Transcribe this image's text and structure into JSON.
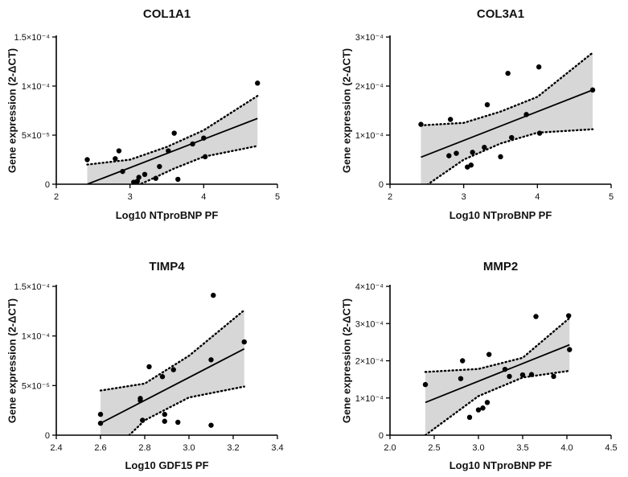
{
  "chart_data": [
    {
      "type": "scatter",
      "title": "COL1A1",
      "xlabel": "Log10 NTproBNP PF",
      "ylabel": "Gene expression (2-ΔCT)",
      "xlim": [
        2,
        5
      ],
      "ylim": [
        0,
        0.00015
      ],
      "xticks": [
        2,
        3,
        4,
        5
      ],
      "xtick_labels": [
        "2",
        "3",
        "4",
        "5"
      ],
      "yticks": [
        0,
        5e-05,
        0.0001,
        0.00015
      ],
      "ytick_labels": [
        "0",
        "5×10⁻⁵",
        "1×10⁻⁴",
        "1.5×10⁻⁴"
      ],
      "points": [
        {
          "x": 2.42,
          "y": 2.5e-05
        },
        {
          "x": 2.8,
          "y": 2.6e-05
        },
        {
          "x": 2.85,
          "y": 3.4e-05
        },
        {
          "x": 2.9,
          "y": 1.3e-05
        },
        {
          "x": 3.05,
          "y": 2e-06
        },
        {
          "x": 3.1,
          "y": 3e-06
        },
        {
          "x": 3.12,
          "y": 7e-06
        },
        {
          "x": 3.2,
          "y": 1e-05
        },
        {
          "x": 3.35,
          "y": 6e-06
        },
        {
          "x": 3.4,
          "y": 1.8e-05
        },
        {
          "x": 3.52,
          "y": 3.4e-05
        },
        {
          "x": 3.6,
          "y": 5.2e-05
        },
        {
          "x": 3.65,
          "y": 5e-06
        },
        {
          "x": 3.85,
          "y": 4.1e-05
        },
        {
          "x": 4.0,
          "y": 4.7e-05
        },
        {
          "x": 4.02,
          "y": 2.8e-05
        },
        {
          "x": 4.73,
          "y": 0.000103
        }
      ],
      "fit": {
        "x": [
          2.42,
          4.73
        ],
        "y": [
          0.0,
          6.7e-05
        ]
      },
      "ci_upper": {
        "x": [
          2.42,
          3.0,
          3.5,
          4.0,
          4.73
        ],
        "y": [
          2e-05,
          2.5e-05,
          3.8e-05,
          5.5e-05,
          9e-05
        ]
      },
      "ci_lower": {
        "x": [
          2.42,
          2.8,
          3.2,
          3.6,
          4.0,
          4.73
        ],
        "y": [
          -2e-05,
          -1e-05,
          2e-06,
          1.6e-05,
          2.8e-05,
          3.9e-05
        ]
      }
    },
    {
      "type": "scatter",
      "title": "COL3A1",
      "xlabel": "Log10 NTproBNP PF",
      "ylabel": "Gene expression (2-ΔCT)",
      "xlim": [
        2,
        5
      ],
      "ylim": [
        0,
        0.0003
      ],
      "xticks": [
        2,
        3,
        4,
        5
      ],
      "xtick_labels": [
        "2",
        "3",
        "4",
        "5"
      ],
      "yticks": [
        0,
        0.0001,
        0.0002,
        0.0003
      ],
      "ytick_labels": [
        "0",
        "1×10⁻⁴",
        "2×10⁻⁴",
        "3×10⁻⁴"
      ],
      "points": [
        {
          "x": 2.42,
          "y": 0.000122
        },
        {
          "x": 2.8,
          "y": 5.8e-05
        },
        {
          "x": 2.82,
          "y": 0.000132
        },
        {
          "x": 2.9,
          "y": 6.3e-05
        },
        {
          "x": 3.05,
          "y": 3.5e-05
        },
        {
          "x": 3.1,
          "y": 3.9e-05
        },
        {
          "x": 3.12,
          "y": 6.5e-05
        },
        {
          "x": 3.28,
          "y": 7.5e-05
        },
        {
          "x": 3.32,
          "y": 0.000162
        },
        {
          "x": 3.5,
          "y": 5.6e-05
        },
        {
          "x": 3.6,
          "y": 0.000226
        },
        {
          "x": 3.65,
          "y": 9.5e-05
        },
        {
          "x": 3.85,
          "y": 0.000142
        },
        {
          "x": 4.02,
          "y": 0.000239
        },
        {
          "x": 4.03,
          "y": 0.000104
        },
        {
          "x": 4.75,
          "y": 0.000192
        }
      ],
      "fit": {
        "x": [
          2.42,
          4.75
        ],
        "y": [
          5.5e-05,
          0.000192
        ]
      },
      "ci_upper": {
        "x": [
          2.42,
          3.0,
          3.5,
          4.0,
          4.75
        ],
        "y": [
          0.00012,
          0.000125,
          0.000148,
          0.000178,
          0.000268
        ]
      },
      "ci_lower": {
        "x": [
          2.42,
          3.0,
          3.5,
          4.0,
          4.75
        ],
        "y": [
          -1e-05,
          5e-05,
          8.3e-05,
          0.000105,
          0.000112
        ]
      }
    },
    {
      "type": "scatter",
      "title": "TIMP4",
      "xlabel": "Log10 GDF15 PF",
      "ylabel": "Gene expression (2-ΔCT)",
      "xlim": [
        2.4,
        3.4
      ],
      "ylim": [
        0,
        0.00015
      ],
      "xticks": [
        2.4,
        2.6,
        2.8,
        3.0,
        3.2,
        3.4
      ],
      "xtick_labels": [
        "2.4",
        "2.6",
        "2.8",
        "3.0",
        "3.2",
        "3.4"
      ],
      "yticks": [
        0,
        5e-05,
        0.0001,
        0.00015
      ],
      "ytick_labels": [
        "0",
        "5×10⁻⁵",
        "1×10⁻⁴",
        "1.5×10⁻⁴"
      ],
      "points": [
        {
          "x": 2.6,
          "y": 2.1e-05
        },
        {
          "x": 2.6,
          "y": 1.2e-05
        },
        {
          "x": 2.78,
          "y": 3.7e-05
        },
        {
          "x": 2.78,
          "y": 3.5e-05
        },
        {
          "x": 2.79,
          "y": 1.5e-05
        },
        {
          "x": 2.82,
          "y": 6.9e-05
        },
        {
          "x": 2.88,
          "y": 5.9e-05
        },
        {
          "x": 2.89,
          "y": 2.1e-05
        },
        {
          "x": 2.89,
          "y": 1.4e-05
        },
        {
          "x": 2.93,
          "y": 6.6e-05
        },
        {
          "x": 2.95,
          "y": 1.3e-05
        },
        {
          "x": 3.1,
          "y": 7.6e-05
        },
        {
          "x": 3.1,
          "y": 1e-05
        },
        {
          "x": 3.11,
          "y": 0.000141
        },
        {
          "x": 3.25,
          "y": 9.4e-05
        }
      ],
      "fit": {
        "x": [
          2.6,
          3.25
        ],
        "y": [
          1.2e-05,
          8.7e-05
        ]
      },
      "ci_upper": {
        "x": [
          2.6,
          2.8,
          3.0,
          3.25
        ],
        "y": [
          4.5e-05,
          5.2e-05,
          8e-05,
          0.000126
        ]
      },
      "ci_lower": {
        "x": [
          2.6,
          2.73,
          2.8,
          3.0,
          3.25
        ],
        "y": [
          -2e-05,
          0.0,
          1.5e-05,
          3.8e-05,
          4.9e-05
        ]
      }
    },
    {
      "type": "scatter",
      "title": "MMP2",
      "xlabel": "Log10 NTproBNP PF",
      "ylabel": "Gene expression (2-ΔCT)",
      "xlim": [
        2.0,
        4.5
      ],
      "ylim": [
        0,
        0.0004
      ],
      "xticks": [
        2.0,
        2.5,
        3.0,
        3.5,
        4.0,
        4.5
      ],
      "xtick_labels": [
        "2.0",
        "2.5",
        "3.0",
        "3.5",
        "4.0",
        "4.5"
      ],
      "yticks": [
        0,
        0.0001,
        0.0002,
        0.0003,
        0.0004
      ],
      "ytick_labels": [
        "0",
        "1×10⁻⁴",
        "2×10⁻⁴",
        "3×10⁻⁴",
        "4×10⁻⁴"
      ],
      "points": [
        {
          "x": 2.4,
          "y": 0.000136
        },
        {
          "x": 2.8,
          "y": 0.000152
        },
        {
          "x": 2.82,
          "y": 0.0002
        },
        {
          "x": 2.9,
          "y": 4.8e-05
        },
        {
          "x": 3.0,
          "y": 6.8e-05
        },
        {
          "x": 3.05,
          "y": 7.3e-05
        },
        {
          "x": 3.1,
          "y": 8.8e-05
        },
        {
          "x": 3.12,
          "y": 0.000217
        },
        {
          "x": 3.3,
          "y": 0.000177
        },
        {
          "x": 3.35,
          "y": 0.000158
        },
        {
          "x": 3.5,
          "y": 0.000162
        },
        {
          "x": 3.6,
          "y": 0.000163
        },
        {
          "x": 3.65,
          "y": 0.000319
        },
        {
          "x": 3.85,
          "y": 0.000158
        },
        {
          "x": 4.02,
          "y": 0.000321
        },
        {
          "x": 4.03,
          "y": 0.00023
        }
      ],
      "fit": {
        "x": [
          2.4,
          4.03
        ],
        "y": [
          8.8e-05,
          0.000243
        ]
      },
      "ci_upper": {
        "x": [
          2.4,
          3.0,
          3.5,
          4.03
        ],
        "y": [
          0.00017,
          0.000178,
          0.000208,
          0.000315
        ]
      },
      "ci_lower": {
        "x": [
          2.4,
          3.0,
          3.5,
          4.03
        ],
        "y": [
          0.0,
          0.000105,
          0.000155,
          0.000173
        ]
      }
    }
  ]
}
